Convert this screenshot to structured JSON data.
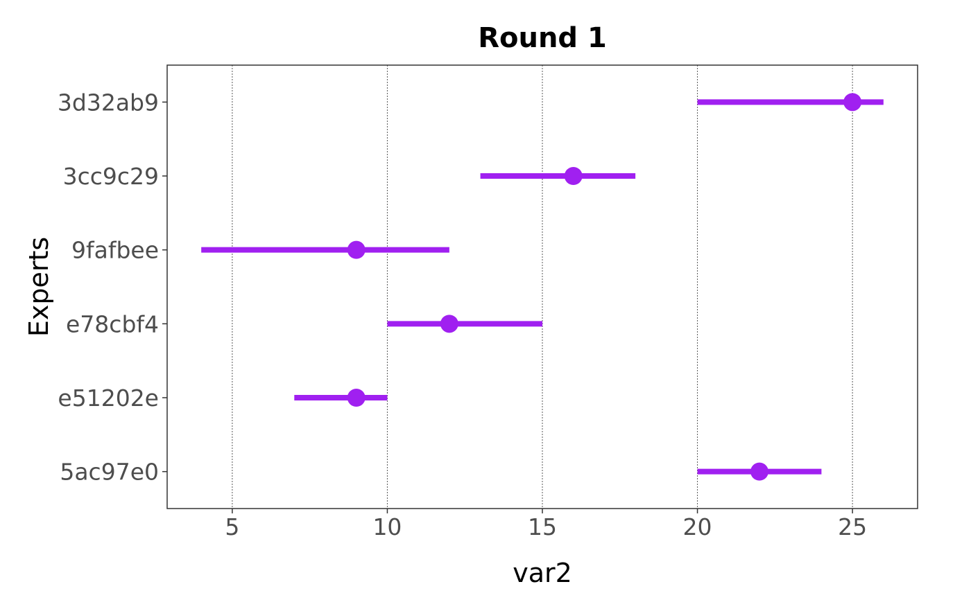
{
  "chart_data": {
    "type": "interval",
    "title": "Round 1",
    "xlabel": "var2",
    "ylabel": "Experts",
    "xlim": [
      2.9,
      27.1
    ],
    "xticks": [
      5,
      10,
      15,
      20,
      25
    ],
    "grid": "vertical-major-dotted",
    "legend": "none",
    "categories": [
      "5ac97e0",
      "e51202e",
      "e78cbf4",
      "9fafbee",
      "3cc9c29",
      "3d32ab9"
    ],
    "series": [
      {
        "points": [
          {
            "category": "5ac97e0",
            "low": 20,
            "high": 24,
            "point": 22
          },
          {
            "category": "e51202e",
            "low": 7,
            "high": 10,
            "point": 9
          },
          {
            "category": "e78cbf4",
            "low": 10,
            "high": 15,
            "point": 12
          },
          {
            "category": "9fafbee",
            "low": 4,
            "high": 12,
            "point": 9
          },
          {
            "category": "3cc9c29",
            "low": 13,
            "high": 18,
            "point": 16
          },
          {
            "category": "3d32ab9",
            "low": 20,
            "high": 26,
            "point": 25
          }
        ]
      }
    ],
    "colors": {
      "series": "#a020f0",
      "panel_border": "#333333",
      "grid": "#555555",
      "tick_text": "#4d4d4d"
    }
  }
}
